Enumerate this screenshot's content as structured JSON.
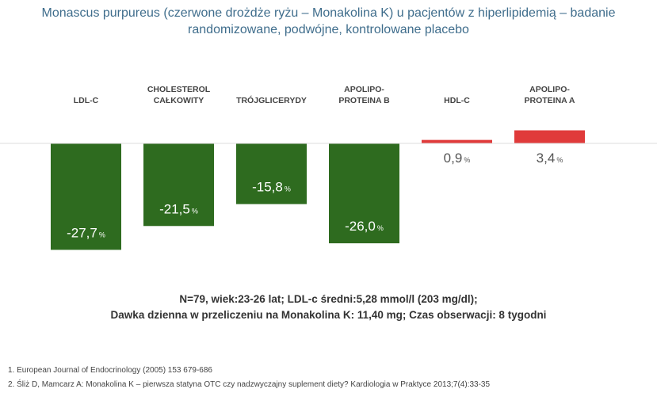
{
  "header": {
    "title_line1": "Monascus purpureus (czerwone drożdże ryżu – Monakolina K) u pacjentów z hiperlipidemią – badanie",
    "title_line2": "randomizowane, podwójne, kontrolowane placebo"
  },
  "chart_data": {
    "type": "bar",
    "title": "",
    "xlabel": "",
    "ylabel": "",
    "unit": "%",
    "categories": [
      [
        "LDL-C"
      ],
      [
        "CHOLESTEROL",
        "CAŁKOWITY"
      ],
      [
        "TRÓJGLICERYDY"
      ],
      [
        "APOLIPO-",
        "PROTEINA B"
      ],
      [
        "HDL-C"
      ],
      [
        "APOLIPO-",
        "PROTEINA A"
      ]
    ],
    "values": [
      -27.7,
      -21.5,
      -15.8,
      -26.0,
      0.9,
      3.4
    ],
    "value_labels": [
      "-27,7",
      "-21,5",
      "-15,8",
      "-26,0",
      "0,9",
      "3,4"
    ],
    "colors": {
      "decrease": "#2e6b1f",
      "increase": "#e03a3a"
    },
    "ylim": [
      -28,
      4
    ]
  },
  "info": {
    "line1": "N=79, wiek:23-26 lat; LDL-c średni:5,28 mmol/l (203 mg/dl);",
    "line2": "Dawka dzienna w przeliczeniu na Monakolina K: 11,40 mg; Czas obserwacji: 8 tygodni"
  },
  "references": [
    "1. European Journal of Endocrinology (2005) 153 679-686",
    "2. Śliż D, Mamcarz A: Monakolina K – pierwsza statyna OTC czy nadzwyczajny suplement diety? Kardiologia w Praktyce 2013;7(4):33-35"
  ]
}
